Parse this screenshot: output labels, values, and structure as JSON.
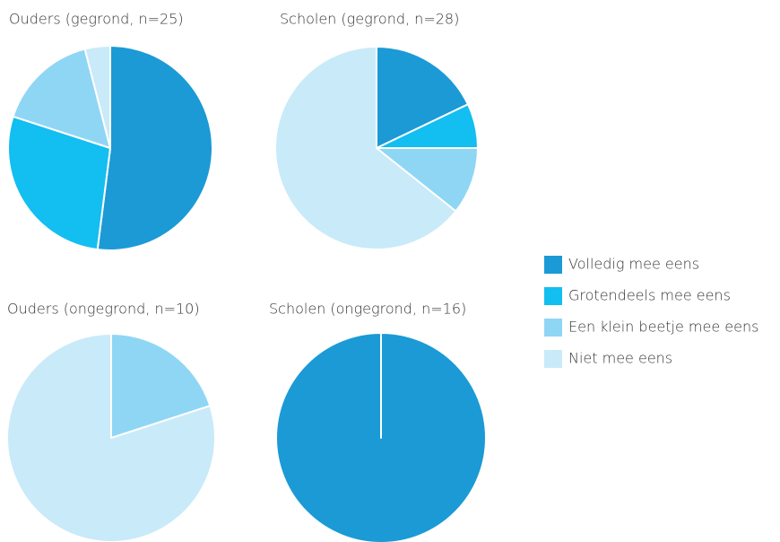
{
  "chart_data": [
    {
      "type": "pie",
      "title": "Ouders (gegrond, n=25)",
      "categories": [
        "Volledig mee eens",
        "Grotendeels mee eens",
        "Een klein beetje mee eens",
        "Niet mee eens"
      ],
      "values": [
        52,
        28,
        16,
        4
      ],
      "colors": [
        "#1b9ad6",
        "#13bef0",
        "#8fd6f5",
        "#c9eaf8"
      ]
    },
    {
      "type": "pie",
      "title": "Scholen (gegrond, n=28)",
      "categories": [
        "Volledig mee eens",
        "Grotendeels mee eens",
        "Een klein beetje mee eens",
        "Niet mee eens"
      ],
      "values": [
        17.9,
        7.1,
        10.7,
        64.3
      ],
      "colors": [
        "#1b9ad6",
        "#13bef0",
        "#8fd6f5",
        "#c9eaf8"
      ]
    },
    {
      "type": "pie",
      "title": "Ouders (ongegrond, n=10)",
      "categories": [
        "Volledig mee eens",
        "Grotendeels mee eens",
        "Een klein beetje mee eens",
        "Niet mee eens"
      ],
      "values": [
        0,
        0,
        20,
        80
      ],
      "colors": [
        "#1b9ad6",
        "#13bef0",
        "#8fd6f5",
        "#c9eaf8"
      ]
    },
    {
      "type": "pie",
      "title": "Scholen (ongegrond, n=16)",
      "categories": [
        "Volledig mee eens",
        "Grotendeels mee eens",
        "Een klein beetje mee eens",
        "Niet mee eens"
      ],
      "values": [
        100,
        0,
        0,
        0
      ],
      "colors": [
        "#1b9ad6",
        "#13bef0",
        "#8fd6f5",
        "#c9eaf8"
      ]
    }
  ]
}
